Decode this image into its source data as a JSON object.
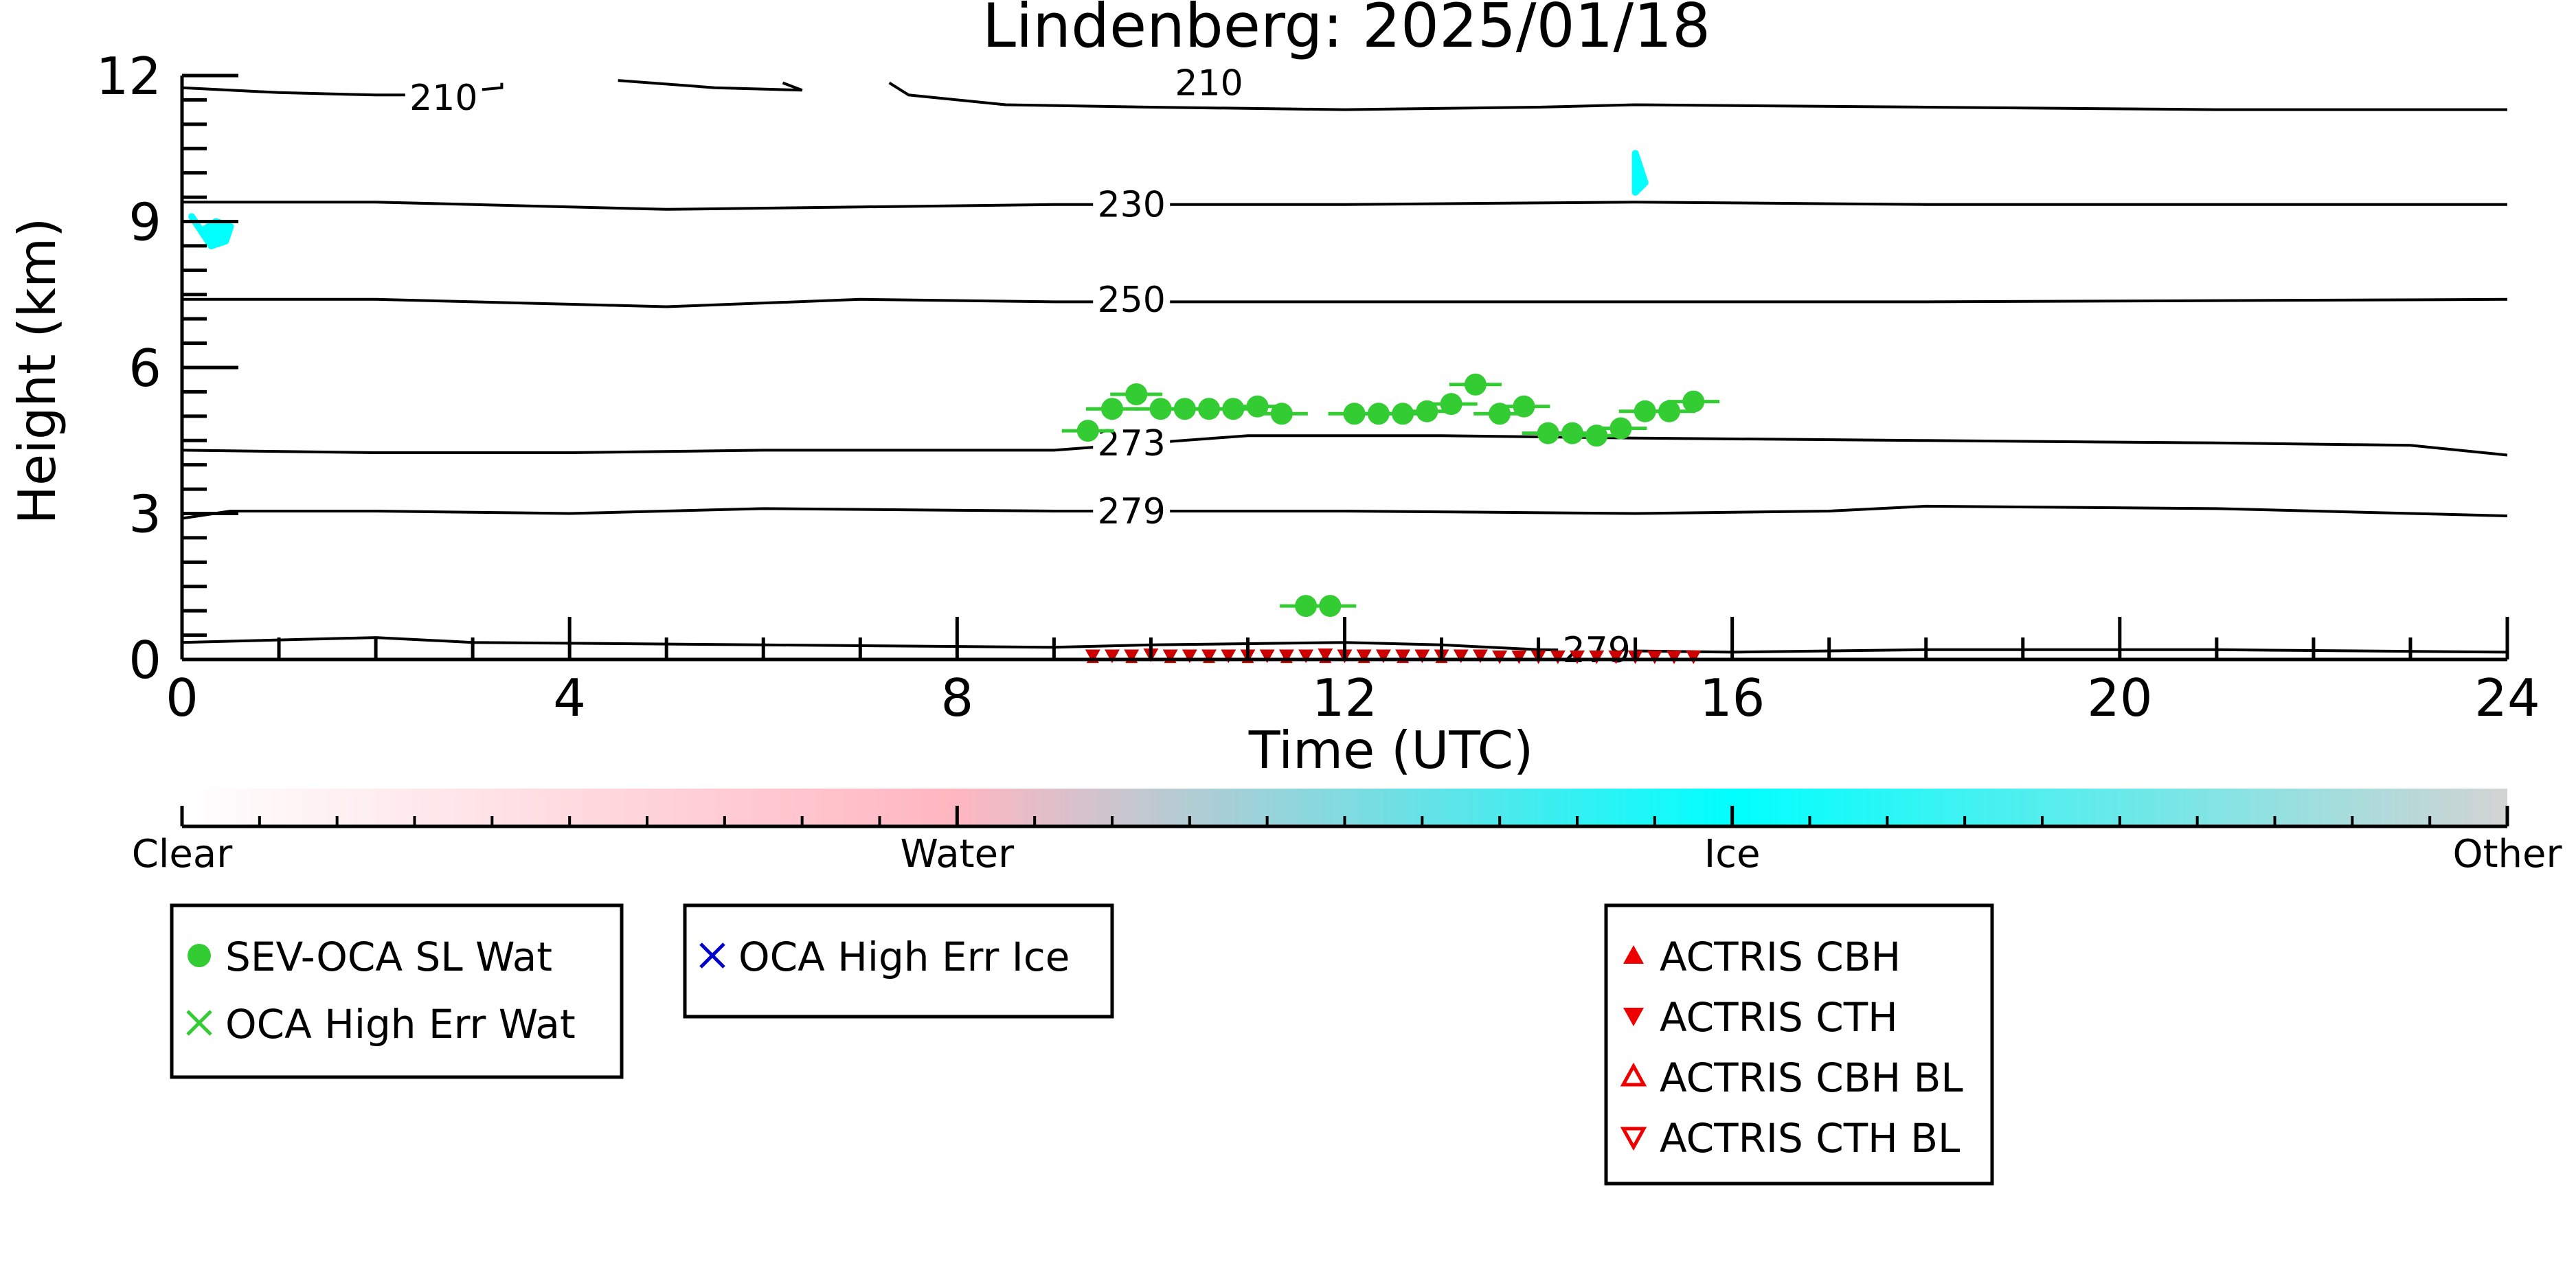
{
  "chart_data": {
    "type": "scatter",
    "title": "Lindenberg: 2025/01/18",
    "xlabel": "Time (UTC)",
    "ylabel": "Height (km)",
    "xlim": [
      0,
      24
    ],
    "ylim": [
      0,
      12
    ],
    "x_ticks": [
      0,
      4,
      8,
      12,
      16,
      20,
      24
    ],
    "y_ticks": [
      0,
      3,
      6,
      9,
      12
    ],
    "series": [
      {
        "name": "SEV-OCA SL Wat",
        "marker": "filled-circle",
        "color": "#33cc33",
        "x": [
          9.35,
          9.6,
          9.85,
          10.1,
          10.35,
          10.6,
          10.85,
          11.1,
          11.35,
          11.6,
          11.85,
          12.1,
          12.35,
          12.6,
          12.85,
          13.1,
          13.35,
          13.6,
          13.85,
          14.1,
          14.35,
          14.6,
          14.85,
          15.1,
          15.35,
          15.6
        ],
        "y": [
          4.7,
          5.15,
          5.45,
          5.15,
          5.15,
          5.15,
          5.15,
          5.2,
          5.05,
          1.1,
          1.1,
          5.05,
          5.05,
          5.05,
          5.1,
          5.25,
          5.65,
          5.05,
          5.2,
          4.65,
          4.65,
          4.6,
          4.75,
          5.1,
          5.1,
          5.3
        ]
      },
      {
        "name": "ACTRIS CTH",
        "marker": "filled-triangle-down",
        "color": "#cc0000",
        "x": [
          9.4,
          9.6,
          9.8,
          10.0,
          10.2,
          10.4,
          10.6,
          10.8,
          11.0,
          11.2,
          11.4,
          11.6,
          11.8,
          12.0,
          12.2,
          12.4,
          12.6,
          12.8,
          13.0,
          13.2,
          13.4,
          13.6,
          13.8,
          14.0,
          14.2,
          14.4,
          14.6,
          14.8,
          15.0,
          15.2,
          15.4,
          15.6
        ],
        "y": [
          0.08,
          0.08,
          0.08,
          0.1,
          0.08,
          0.08,
          0.08,
          0.08,
          0.08,
          0.08,
          0.08,
          0.08,
          0.1,
          0.08,
          0.08,
          0.08,
          0.08,
          0.08,
          0.08,
          0.08,
          0.08,
          0.06,
          0.06,
          0.06,
          0.06,
          0.06,
          0.06,
          0.06,
          0.06,
          0.06,
          0.06,
          0.06
        ]
      },
      {
        "name": "ACTRIS CBH",
        "marker": "filled-triangle-up",
        "color": "#cc0000",
        "x": [
          9.4,
          9.8,
          10.2,
          10.6,
          11.0,
          11.4,
          11.8,
          12.2,
          12.6,
          13.0
        ],
        "y": [
          0.03,
          0.03,
          0.03,
          0.03,
          0.03,
          0.03,
          0.03,
          0.03,
          0.03,
          0.03
        ]
      }
    ],
    "contours": [
      {
        "label": "210",
        "label_at": [
          2.7,
          11.55
        ],
        "points": [
          [
            0,
            11.75
          ],
          [
            1,
            11.65
          ],
          [
            2,
            11.6
          ],
          [
            2.5,
            11.6
          ],
          [
            3.3,
            11.75
          ],
          [
            3.3,
            11.85
          ]
        ]
      },
      {
        "label": "",
        "label_at": null,
        "points": [
          [
            4.5,
            11.9
          ],
          [
            5.5,
            11.75
          ],
          [
            6.4,
            11.7
          ],
          [
            6.2,
            11.85
          ]
        ]
      },
      {
        "label": "210",
        "label_at": [
          10.6,
          11.85
        ],
        "points": [
          [
            7.3,
            11.85
          ],
          [
            7.5,
            11.6
          ],
          [
            8.5,
            11.4
          ],
          [
            10,
            11.35
          ],
          [
            12,
            11.3
          ],
          [
            14,
            11.35
          ],
          [
            15,
            11.4
          ],
          [
            18,
            11.35
          ],
          [
            21,
            11.3
          ],
          [
            24,
            11.3
          ]
        ]
      },
      {
        "label": "230",
        "label_at": [
          9.8,
          9.35
        ],
        "points": [
          [
            0,
            9.4
          ],
          [
            2,
            9.4
          ],
          [
            4,
            9.3
          ],
          [
            5,
            9.25
          ],
          [
            7,
            9.3
          ],
          [
            9,
            9.35
          ],
          [
            12,
            9.35
          ],
          [
            15,
            9.4
          ],
          [
            18,
            9.35
          ],
          [
            24,
            9.35
          ]
        ]
      },
      {
        "label": "250",
        "label_at": [
          9.8,
          7.4
        ],
        "points": [
          [
            0,
            7.4
          ],
          [
            2,
            7.4
          ],
          [
            4,
            7.3
          ],
          [
            5,
            7.25
          ],
          [
            7,
            7.4
          ],
          [
            9,
            7.35
          ],
          [
            12,
            7.35
          ],
          [
            18,
            7.35
          ],
          [
            24,
            7.4
          ]
        ]
      },
      {
        "label": "273",
        "label_at": [
          9.8,
          4.45
        ],
        "points": [
          [
            0,
            4.3
          ],
          [
            2,
            4.25
          ],
          [
            4,
            4.25
          ],
          [
            6,
            4.3
          ],
          [
            9,
            4.3
          ],
          [
            10,
            4.45
          ],
          [
            11,
            4.6
          ],
          [
            13,
            4.6
          ],
          [
            15,
            4.55
          ],
          [
            18,
            4.5
          ],
          [
            21,
            4.45
          ],
          [
            23,
            4.4
          ],
          [
            24,
            4.2
          ]
        ]
      },
      {
        "label": "279",
        "label_at": [
          9.8,
          3.05
        ],
        "points": [
          [
            0,
            2.9
          ],
          [
            0.5,
            3.05
          ],
          [
            2,
            3.05
          ],
          [
            4,
            3.0
          ],
          [
            6,
            3.1
          ],
          [
            9,
            3.05
          ],
          [
            12,
            3.05
          ],
          [
            15,
            3.0
          ],
          [
            17,
            3.05
          ],
          [
            18,
            3.15
          ],
          [
            21,
            3.1
          ],
          [
            24,
            2.95
          ]
        ]
      },
      {
        "label": "279",
        "label_at": [
          14.6,
          0.2
        ],
        "points": [
          [
            0,
            0.35
          ],
          [
            2,
            0.45
          ],
          [
            3,
            0.35
          ],
          [
            6,
            0.3
          ],
          [
            9,
            0.25
          ],
          [
            10,
            0.3
          ],
          [
            12,
            0.35
          ],
          [
            13,
            0.3
          ],
          [
            14,
            0.2
          ],
          [
            16,
            0.15
          ],
          [
            18,
            0.2
          ],
          [
            21,
            0.2
          ],
          [
            24,
            0.15
          ]
        ]
      }
    ],
    "ice_patches": [
      {
        "x": [
          0.1,
          0.2,
          0.35,
          0.5,
          0.45,
          0.3
        ],
        "y": [
          9.1,
          8.8,
          9.0,
          8.9,
          8.6,
          8.5
        ]
      },
      {
        "x": [
          15.0,
          15.05,
          15.1,
          15.0
        ],
        "y": [
          10.4,
          10.1,
          9.8,
          9.6
        ]
      }
    ],
    "colorbar": {
      "labels": [
        "Clear",
        "Water",
        "Ice",
        "Other"
      ],
      "colors": [
        "#ffffff",
        "#ffb6c1",
        "#00ffff",
        "#d3d3d3"
      ]
    },
    "legends": [
      {
        "entries": [
          {
            "label": "SEV-OCA SL Wat",
            "marker": "filled-circle",
            "color": "#33cc33"
          },
          {
            "label": "OCA High Err Wat",
            "marker": "x",
            "color": "#33cc33"
          }
        ]
      },
      {
        "entries": [
          {
            "label": "OCA High Err Ice",
            "marker": "x",
            "color": "#0000cc"
          }
        ]
      },
      {
        "entries": [
          {
            "label": "ACTRIS CBH",
            "marker": "filled-triangle-up",
            "color": "#ee0000"
          },
          {
            "label": "ACTRIS CTH",
            "marker": "filled-triangle-down",
            "color": "#ee0000"
          },
          {
            "label": "ACTRIS CBH BL",
            "marker": "open-triangle-up",
            "color": "#ee0000"
          },
          {
            "label": "ACTRIS CTH BL",
            "marker": "open-triangle-down",
            "color": "#ee0000"
          }
        ]
      }
    ]
  }
}
